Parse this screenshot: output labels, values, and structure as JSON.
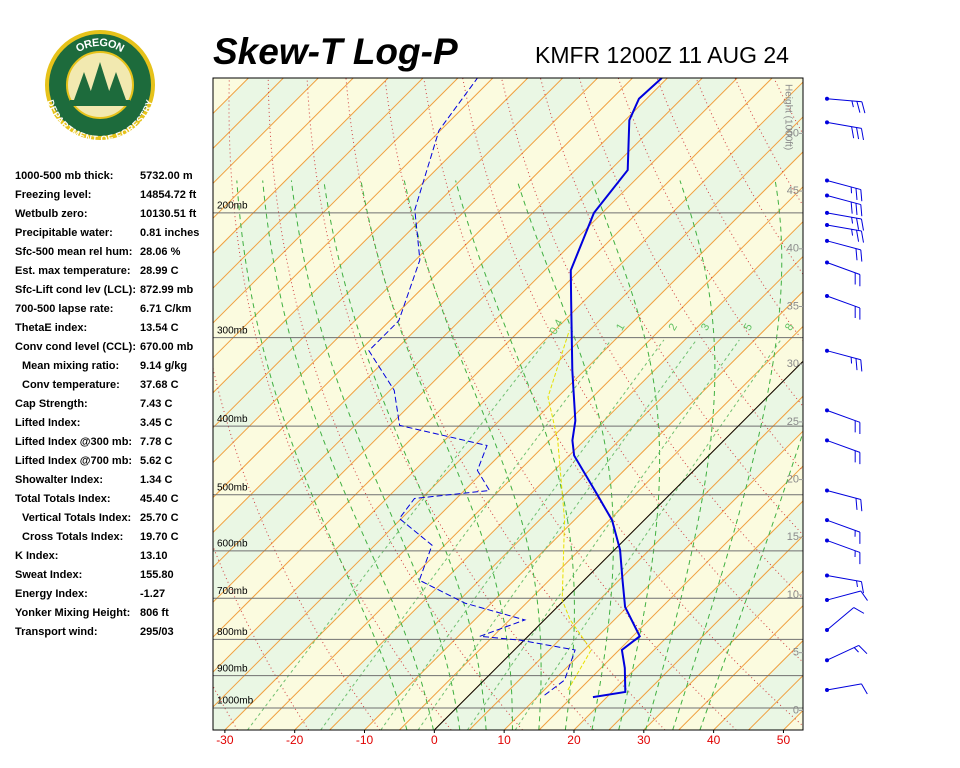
{
  "header": {
    "title": "Skew-T Log-P",
    "subtitle": "KMFR 1200Z 11 AUG 24"
  },
  "logo": {
    "top": "OREGON",
    "bottom": "DEPARTMENT OF FORESTRY"
  },
  "indices": [
    {
      "label": "1000-500 mb thick:",
      "value": "5732.00 m"
    },
    {
      "label": "Freezing level:",
      "value": "14854.72 ft"
    },
    {
      "label": "Wetbulb zero:",
      "value": "10130.51 ft"
    },
    {
      "label": "Precipitable water:",
      "value": "0.81 inches"
    },
    {
      "label": "Sfc-500 mean rel hum:",
      "value": "28.06 %"
    },
    {
      "label": "Est. max temperature:",
      "value": "28.99 C"
    },
    {
      "label": "Sfc-Lift cond lev (LCL):",
      "value": "872.99 mb"
    },
    {
      "label": "700-500 lapse rate:",
      "value": "6.71 C/km"
    },
    {
      "label": "ThetaE index:",
      "value": "13.54 C"
    },
    {
      "label": "Conv cond level (CCL):",
      "value": "670.00 mb"
    },
    {
      "label": "Mean mixing ratio:",
      "value": "9.14 g/kg",
      "indent": true
    },
    {
      "label": "Conv temperature:",
      "value": "37.68 C",
      "indent": true
    },
    {
      "label": "Cap Strength:",
      "value": "7.43 C"
    },
    {
      "label": "Lifted Index:",
      "value": "3.45 C"
    },
    {
      "label": "Lifted Index @300 mb:",
      "value": "7.78 C"
    },
    {
      "label": "Lifted Index @700 mb:",
      "value": "5.62 C"
    },
    {
      "label": "Showalter Index:",
      "value": "1.34 C"
    },
    {
      "label": "Total Totals Index:",
      "value": "45.40 C"
    },
    {
      "label": "Vertical Totals Index:",
      "value": "25.70 C",
      "indent": true
    },
    {
      "label": "Cross Totals Index:",
      "value": "19.70 C",
      "indent": true
    },
    {
      "label": "K Index:",
      "value": "13.10"
    },
    {
      "label": "Sweat Index:",
      "value": "155.80"
    },
    {
      "label": "Energy Index:",
      "value": "-1.27"
    },
    {
      "label": "Yonker Mixing Height:",
      "value": "806 ft"
    },
    {
      "label": "Transport wind:",
      "value": "295/03"
    }
  ],
  "chart_data": {
    "type": "skewt",
    "xlim": [
      -31.7,
      52.8
    ],
    "xticks": [
      -30,
      -20,
      -10,
      0,
      10,
      20,
      30,
      40,
      50
    ],
    "ylim": [
      1074,
      129
    ],
    "ylog": true,
    "yticks": [
      {
        "value": 1000,
        "label": "1000mb"
      },
      {
        "value": 900,
        "label": "900mb"
      },
      {
        "value": 800,
        "label": "800mb"
      },
      {
        "value": 700,
        "label": "700mb"
      },
      {
        "value": 600,
        "label": "600mb"
      },
      {
        "value": 500,
        "label": "500mb"
      },
      {
        "value": 400,
        "label": "400mb"
      },
      {
        "value": 300,
        "label": "300mb"
      },
      {
        "value": 200,
        "label": "200mb"
      }
    ],
    "y2label": "Height (1000ft)",
    "y2lim": [
      -1.7,
      54.8
    ],
    "y2ticks": [
      0,
      5,
      10,
      15,
      20,
      25,
      30,
      35,
      40,
      45,
      50
    ],
    "mixing_ratio_labels": [
      0.4,
      1,
      2,
      3,
      5,
      8
    ],
    "temperature": {
      "color": "#0000dd",
      "pressure": [
        965,
        949,
        878,
        828,
        792,
        720,
        660,
        598,
        543,
        501,
        440,
        419,
        393,
        334,
        266,
        241,
        200,
        174,
        148,
        138,
        129
      ],
      "values": [
        18.0,
        21.9,
        18.4,
        15.4,
        16.0,
        9.7,
        5.5,
        0.8,
        -4.6,
        -10.2,
        -19.3,
        -21.7,
        -24.1,
        -31.7,
        -41.9,
        -46.3,
        -51.2,
        -52.5,
        -59.4,
        -61.1,
        -60.8
      ]
    },
    "dewpoint": {
      "color": "#0000dd",
      "pressure": [
        959,
        913,
        828,
        802,
        792,
        751,
        711,
        660,
        589,
        540,
        506,
        493,
        462,
        426,
        399,
        356,
        313,
        284,
        233,
        198,
        153,
        129
      ],
      "values": [
        10.8,
        11.5,
        8.7,
        -0.6,
        -6.9,
        -2.8,
        -13.8,
        -23.6,
        -26.8,
        -35.3,
        -36.0,
        -26.4,
        -31.0,
        -33.2,
        -48.6,
        -54.4,
        -63.7,
        -63.7,
        -69.4,
        -77.3,
        -85.2,
        -87.2
      ]
    },
    "wetbulb": {
      "color": "#e8e000",
      "pressure": [
        943,
        828,
        751,
        704,
        543,
        419,
        364,
        293
      ],
      "values": [
        13.4,
        11.0,
        3.7,
        -0.3,
        -11.4,
        -23.8,
        -31.4,
        -37.9
      ]
    },
    "winds": {
      "color": "#0000dd",
      "pressure": [
        138,
        149,
        180,
        189,
        200,
        208,
        219,
        235,
        262,
        313,
        380,
        419,
        493,
        543,
        580,
        650,
        704,
        776,
        856,
        943
      ],
      "direction": [
        95,
        100,
        105,
        105,
        100,
        100,
        105,
        110,
        110,
        105,
        110,
        110,
        105,
        110,
        110,
        100,
        75,
        50,
        65,
        80
      ],
      "speed": [
        25,
        30,
        25,
        30,
        25,
        25,
        20,
        20,
        20,
        25,
        20,
        20,
        20,
        15,
        15,
        15,
        10,
        10,
        15,
        10
      ]
    }
  }
}
